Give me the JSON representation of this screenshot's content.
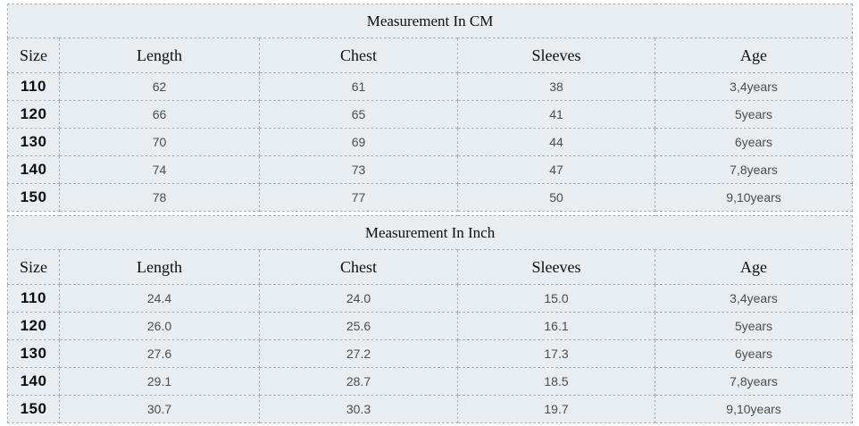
{
  "style": {
    "page_background": "#ffffff",
    "cell_background": "#e8edf2",
    "border_color": "#a6aeb6",
    "heading_text_color": "#0d0d0d",
    "data_text_color": "#4d4d4d"
  },
  "chart_data": [
    {
      "type": "table",
      "title": "Measurement In CM",
      "columns": [
        "Size",
        "Length",
        "Chest",
        "Sleeves",
        "Age"
      ],
      "rows": [
        [
          "110",
          "62",
          "61",
          "38",
          "3,4years"
        ],
        [
          "120",
          "66",
          "65",
          "41",
          "5years"
        ],
        [
          "130",
          "70",
          "69",
          "44",
          "6years"
        ],
        [
          "140",
          "74",
          "73",
          "47",
          "7,8years"
        ],
        [
          "150",
          "78",
          "77",
          "50",
          "9,10years"
        ]
      ]
    },
    {
      "type": "table",
      "title": "Measurement In Inch",
      "columns": [
        "Size",
        "Length",
        "Chest",
        "Sleeves",
        "Age"
      ],
      "rows": [
        [
          "110",
          "24.4",
          "24.0",
          "15.0",
          "3,4years"
        ],
        [
          "120",
          "26.0",
          "25.6",
          "16.1",
          "5years"
        ],
        [
          "130",
          "27.6",
          "27.2",
          "17.3",
          "6years"
        ],
        [
          "140",
          "29.1",
          "28.7",
          "18.5",
          "7,8years"
        ],
        [
          "150",
          "30.7",
          "30.3",
          "19.7",
          "9,10years"
        ]
      ]
    }
  ]
}
